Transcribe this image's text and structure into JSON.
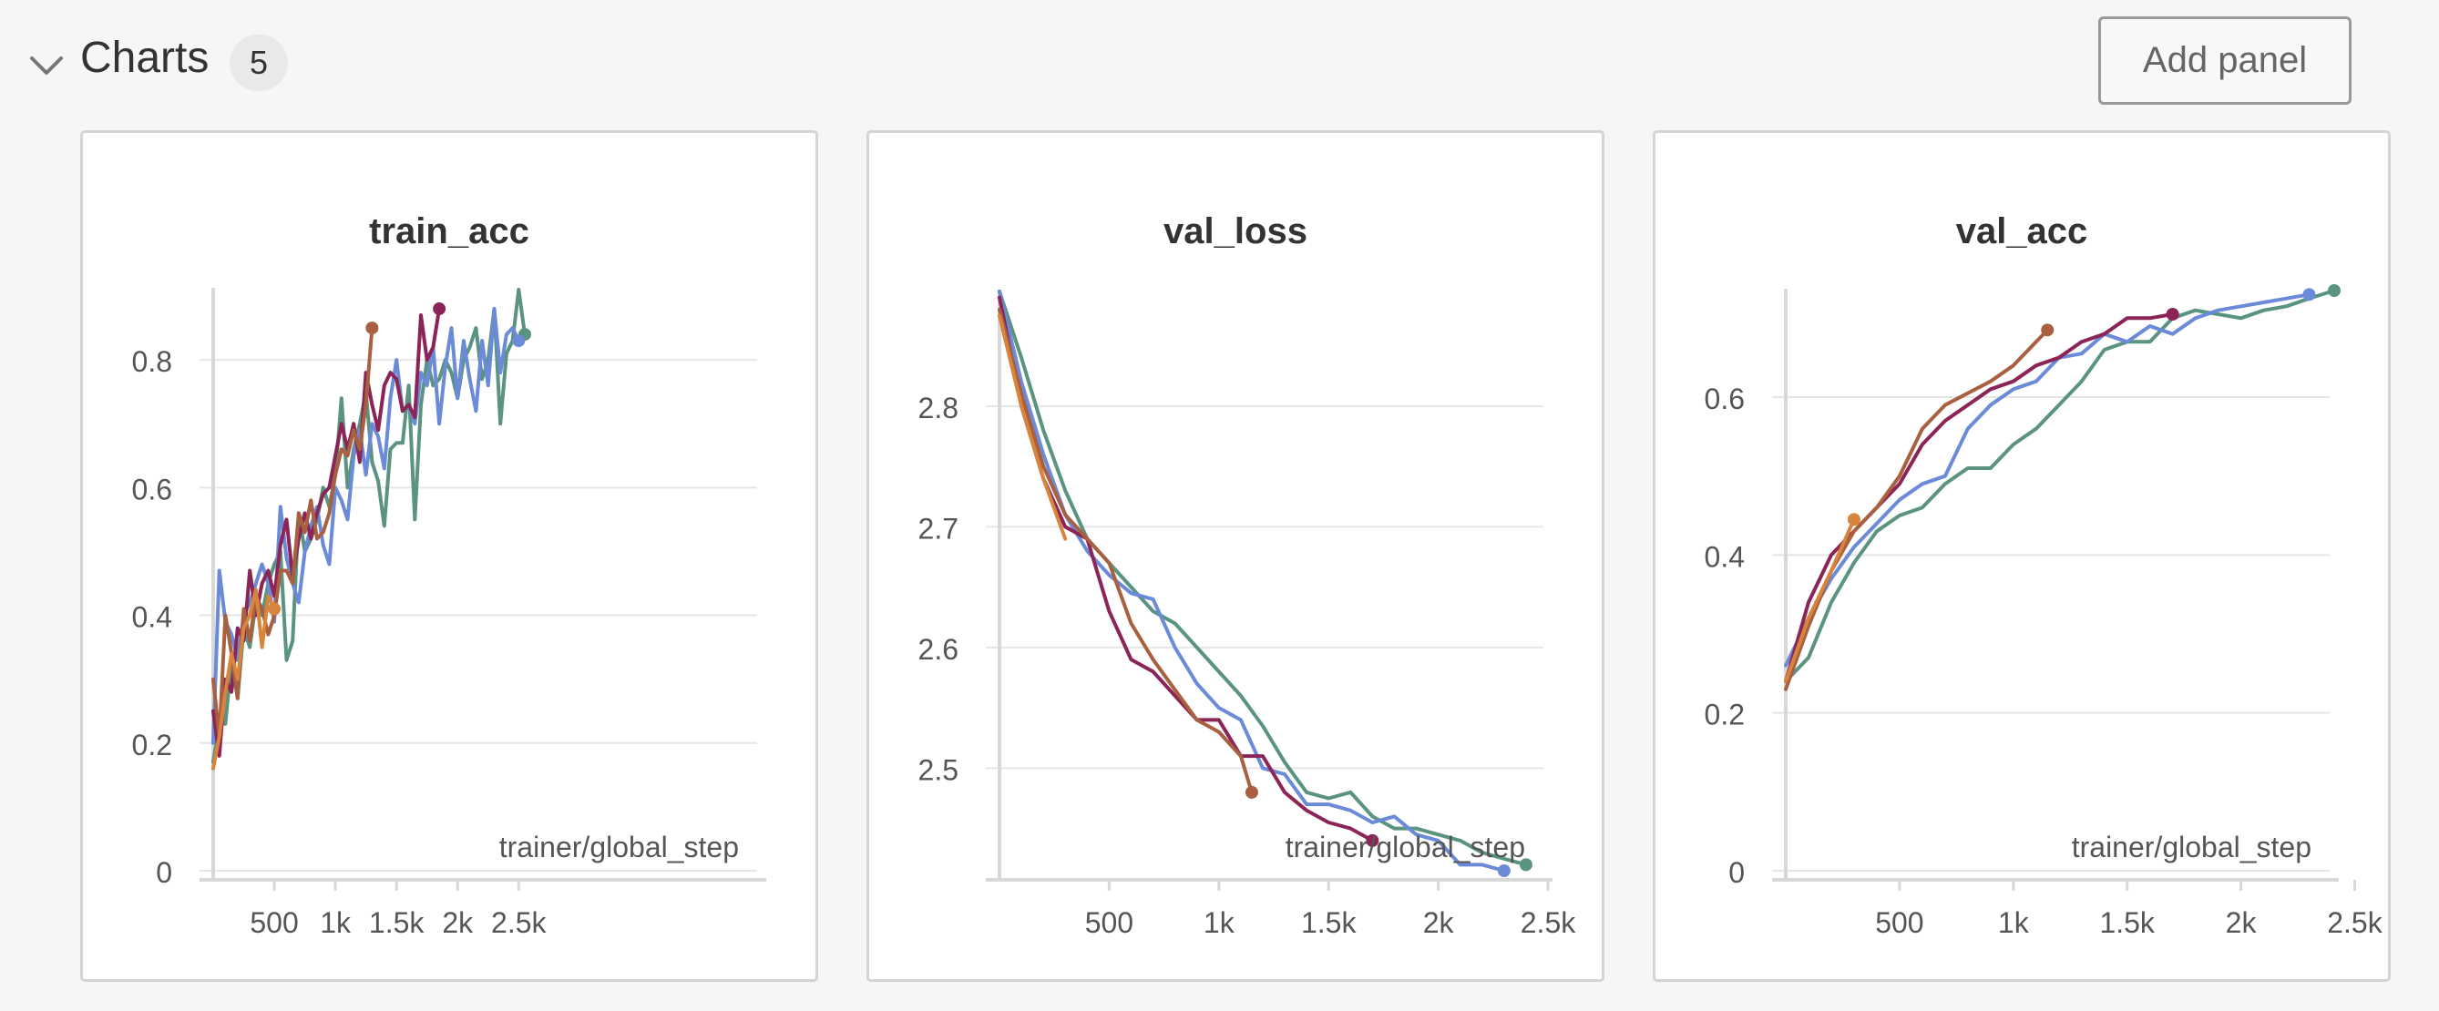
{
  "section": {
    "title": "Charts",
    "count": "5",
    "add_panel_label": "Add panel"
  },
  "icons": {
    "collapse": "chevron-down-icon"
  },
  "colors": {
    "blue": "#6b8ad7",
    "green": "#5a9480",
    "purple": "#8b2457",
    "brown": "#a86040",
    "orange": "#d8843c"
  },
  "chart_data": [
    {
      "type": "line",
      "title": "train_acc",
      "xlabel": "trainer/global_step",
      "ylabel": "",
      "xlim": [
        0,
        2550
      ],
      "ylim": [
        0,
        0.91
      ],
      "x_ticks": [
        500,
        1000,
        1500,
        2000,
        2500
      ],
      "x_tick_labels": [
        "500",
        "1k",
        "1.5k",
        "2k",
        "2.5k"
      ],
      "y_ticks": [
        0,
        0.2,
        0.4,
        0.6,
        0.8
      ],
      "y_tick_labels": [
        "0",
        "0.2",
        "0.4",
        "0.6",
        "0.8"
      ],
      "grid": true,
      "series": [
        {
          "color": "#5a9480",
          "end_marker": true,
          "x": [
            0,
            50,
            100,
            150,
            200,
            250,
            300,
            350,
            400,
            450,
            500,
            550,
            600,
            650,
            700,
            750,
            800,
            850,
            900,
            950,
            1000,
            1050,
            1100,
            1150,
            1200,
            1250,
            1300,
            1350,
            1400,
            1450,
            1500,
            1550,
            1600,
            1650,
            1700,
            1750,
            1800,
            1850,
            1900,
            1950,
            2000,
            2050,
            2100,
            2150,
            2200,
            2250,
            2300,
            2350,
            2400,
            2450,
            2500,
            2550
          ],
          "y": [
            0.17,
            0.23,
            0.23,
            0.33,
            0.27,
            0.38,
            0.35,
            0.42,
            0.4,
            0.45,
            0.48,
            0.5,
            0.33,
            0.36,
            0.56,
            0.5,
            0.52,
            0.55,
            0.6,
            0.57,
            0.62,
            0.74,
            0.6,
            0.66,
            0.7,
            0.75,
            0.64,
            0.61,
            0.54,
            0.66,
            0.67,
            0.67,
            0.76,
            0.55,
            0.73,
            0.8,
            0.76,
            0.77,
            0.8,
            0.78,
            0.74,
            0.8,
            0.82,
            0.85,
            0.77,
            0.8,
            0.88,
            0.7,
            0.81,
            0.83,
            0.91,
            0.84
          ]
        },
        {
          "color": "#6b8ad7",
          "end_marker": true,
          "x": [
            0,
            50,
            100,
            150,
            200,
            250,
            300,
            350,
            400,
            450,
            500,
            550,
            600,
            650,
            700,
            750,
            800,
            850,
            900,
            950,
            1000,
            1050,
            1100,
            1150,
            1200,
            1250,
            1300,
            1350,
            1400,
            1450,
            1500,
            1550,
            1600,
            1650,
            1700,
            1750,
            1800,
            1850,
            1900,
            1950,
            2000,
            2050,
            2100,
            2150,
            2200,
            2250,
            2300,
            2350,
            2400,
            2450,
            2500
          ],
          "y": [
            0.2,
            0.47,
            0.39,
            0.37,
            0.33,
            0.4,
            0.42,
            0.45,
            0.48,
            0.45,
            0.39,
            0.57,
            0.49,
            0.45,
            0.42,
            0.5,
            0.54,
            0.57,
            0.51,
            0.48,
            0.6,
            0.58,
            0.55,
            0.65,
            0.69,
            0.62,
            0.7,
            0.68,
            0.63,
            0.74,
            0.8,
            0.72,
            0.73,
            0.7,
            0.78,
            0.76,
            0.82,
            0.7,
            0.79,
            0.85,
            0.74,
            0.83,
            0.77,
            0.72,
            0.83,
            0.76,
            0.88,
            0.78,
            0.84,
            0.85,
            0.83
          ]
        },
        {
          "color": "#8b2457",
          "end_marker": true,
          "x": [
            0,
            50,
            100,
            150,
            200,
            250,
            300,
            350,
            400,
            450,
            500,
            550,
            600,
            650,
            700,
            750,
            800,
            850,
            900,
            950,
            1000,
            1050,
            1100,
            1150,
            1200,
            1250,
            1300,
            1350,
            1400,
            1450,
            1500,
            1550,
            1600,
            1650,
            1700,
            1750,
            1800,
            1850
          ],
          "y": [
            0.25,
            0.18,
            0.3,
            0.28,
            0.38,
            0.36,
            0.47,
            0.4,
            0.45,
            0.47,
            0.43,
            0.51,
            0.55,
            0.46,
            0.52,
            0.56,
            0.52,
            0.56,
            0.59,
            0.6,
            0.65,
            0.7,
            0.66,
            0.7,
            0.64,
            0.78,
            0.73,
            0.69,
            0.76,
            0.78,
            0.77,
            0.72,
            0.73,
            0.71,
            0.87,
            0.8,
            0.82,
            0.88
          ]
        },
        {
          "color": "#a86040",
          "end_marker": true,
          "x": [
            0,
            50,
            100,
            150,
            200,
            250,
            300,
            350,
            400,
            450,
            500,
            550,
            600,
            650,
            700,
            750,
            800,
            850,
            900,
            950,
            1000,
            1050,
            1100,
            1150,
            1200,
            1250,
            1300
          ],
          "y": [
            0.3,
            0.21,
            0.4,
            0.34,
            0.27,
            0.41,
            0.36,
            0.43,
            0.41,
            0.37,
            0.4,
            0.47,
            0.47,
            0.45,
            0.56,
            0.53,
            0.58,
            0.52,
            0.53,
            0.56,
            0.62,
            0.66,
            0.65,
            0.69,
            0.66,
            0.73,
            0.85
          ]
        },
        {
          "color": "#d8843c",
          "end_marker": true,
          "x": [
            0,
            50,
            100,
            150,
            200,
            250,
            300,
            350,
            400,
            450,
            500
          ],
          "y": [
            0.16,
            0.21,
            0.28,
            0.34,
            0.3,
            0.38,
            0.4,
            0.44,
            0.35,
            0.43,
            0.41
          ]
        }
      ]
    },
    {
      "type": "line",
      "title": "val_loss",
      "xlabel": "trainer/global_step",
      "ylabel": "",
      "xlim": [
        0,
        2500
      ],
      "ylim": [
        2.415,
        2.895
      ],
      "x_ticks": [
        500,
        1000,
        1500,
        2000,
        2500
      ],
      "x_tick_labels": [
        "500",
        "1k",
        "1.5k",
        "2k",
        "2.5k"
      ],
      "y_ticks": [
        2.5,
        2.6,
        2.7,
        2.8
      ],
      "y_tick_labels": [
        "2.5",
        "2.6",
        "2.7",
        "2.8"
      ],
      "grid": true,
      "series": [
        {
          "color": "#5a9480",
          "end_marker": true,
          "x": [
            0,
            100,
            200,
            300,
            400,
            500,
            600,
            700,
            800,
            900,
            1000,
            1100,
            1200,
            1300,
            1400,
            1500,
            1600,
            1700,
            1800,
            1900,
            2000,
            2100,
            2200,
            2300,
            2400
          ],
          "y": [
            2.895,
            2.84,
            2.78,
            2.73,
            2.69,
            2.67,
            2.65,
            2.63,
            2.62,
            2.6,
            2.58,
            2.56,
            2.535,
            2.505,
            2.48,
            2.475,
            2.48,
            2.46,
            2.45,
            2.45,
            2.445,
            2.44,
            2.43,
            2.425,
            2.42
          ]
        },
        {
          "color": "#6b8ad7",
          "end_marker": true,
          "x": [
            0,
            100,
            200,
            300,
            400,
            500,
            600,
            700,
            800,
            900,
            1000,
            1100,
            1200,
            1300,
            1400,
            1500,
            1600,
            1700,
            1800,
            1900,
            2000,
            2100,
            2200,
            2300
          ],
          "y": [
            2.895,
            2.82,
            2.76,
            2.71,
            2.68,
            2.66,
            2.645,
            2.64,
            2.6,
            2.57,
            2.55,
            2.54,
            2.5,
            2.495,
            2.47,
            2.47,
            2.465,
            2.455,
            2.46,
            2.445,
            2.44,
            2.42,
            2.42,
            2.415
          ]
        },
        {
          "color": "#8b2457",
          "end_marker": true,
          "x": [
            0,
            100,
            200,
            300,
            400,
            500,
            600,
            700,
            800,
            900,
            1000,
            1100,
            1200,
            1300,
            1400,
            1500,
            1600,
            1700
          ],
          "y": [
            2.89,
            2.8,
            2.74,
            2.7,
            2.69,
            2.63,
            2.59,
            2.58,
            2.56,
            2.54,
            2.54,
            2.51,
            2.51,
            2.48,
            2.465,
            2.455,
            2.45,
            2.44
          ]
        },
        {
          "color": "#a86040",
          "end_marker": true,
          "x": [
            0,
            100,
            200,
            300,
            400,
            500,
            600,
            700,
            800,
            900,
            1000,
            1100,
            1150
          ],
          "y": [
            2.88,
            2.81,
            2.75,
            2.71,
            2.69,
            2.67,
            2.62,
            2.59,
            2.565,
            2.54,
            2.53,
            2.51,
            2.48
          ]
        },
        {
          "color": "#d8843c",
          "end_marker": false,
          "x": [
            0,
            100,
            200,
            300
          ],
          "y": [
            2.875,
            2.8,
            2.74,
            2.69
          ]
        }
      ]
    },
    {
      "type": "line",
      "title": "val_acc",
      "xlabel": "trainer/global_step",
      "ylabel": "",
      "xlim": [
        0,
        2410
      ],
      "ylim": [
        0,
        0.735
      ],
      "x_ticks": [
        500,
        1000,
        1500,
        2000,
        2500
      ],
      "x_tick_labels": [
        "500",
        "1k",
        "1.5k",
        "2k",
        "2.5k"
      ],
      "y_ticks": [
        0,
        0.2,
        0.4,
        0.6
      ],
      "y_tick_labels": [
        "0",
        "0.2",
        "0.4",
        "0.6"
      ],
      "grid": true,
      "series": [
        {
          "color": "#5a9480",
          "end_marker": true,
          "x": [
            0,
            100,
            200,
            300,
            400,
            500,
            600,
            700,
            800,
            900,
            1000,
            1100,
            1200,
            1300,
            1400,
            1500,
            1600,
            1700,
            1800,
            1900,
            2000,
            2100,
            2200,
            2300,
            2410
          ],
          "y": [
            0.24,
            0.27,
            0.34,
            0.39,
            0.43,
            0.45,
            0.46,
            0.49,
            0.51,
            0.51,
            0.54,
            0.56,
            0.59,
            0.62,
            0.66,
            0.67,
            0.67,
            0.7,
            0.71,
            0.705,
            0.7,
            0.71,
            0.715,
            0.725,
            0.735
          ]
        },
        {
          "color": "#6b8ad7",
          "end_marker": true,
          "x": [
            0,
            100,
            200,
            300,
            400,
            500,
            600,
            700,
            800,
            900,
            1000,
            1100,
            1200,
            1300,
            1400,
            1500,
            1600,
            1700,
            1800,
            1900,
            2000,
            2100,
            2200,
            2300
          ],
          "y": [
            0.26,
            0.32,
            0.37,
            0.41,
            0.44,
            0.47,
            0.49,
            0.5,
            0.56,
            0.59,
            0.61,
            0.62,
            0.65,
            0.655,
            0.68,
            0.67,
            0.69,
            0.68,
            0.7,
            0.71,
            0.715,
            0.72,
            0.725,
            0.73
          ]
        },
        {
          "color": "#8b2457",
          "end_marker": true,
          "x": [
            0,
            100,
            200,
            300,
            400,
            500,
            600,
            700,
            800,
            900,
            1000,
            1100,
            1200,
            1300,
            1400,
            1500,
            1600,
            1700
          ],
          "y": [
            0.24,
            0.34,
            0.4,
            0.43,
            0.46,
            0.49,
            0.54,
            0.57,
            0.59,
            0.61,
            0.62,
            0.64,
            0.65,
            0.67,
            0.68,
            0.7,
            0.7,
            0.705
          ]
        },
        {
          "color": "#a86040",
          "end_marker": true,
          "x": [
            0,
            100,
            200,
            300,
            400,
            500,
            600,
            700,
            800,
            900,
            1000,
            1100,
            1150
          ],
          "y": [
            0.23,
            0.31,
            0.38,
            0.43,
            0.46,
            0.5,
            0.56,
            0.59,
            0.605,
            0.62,
            0.64,
            0.67,
            0.685
          ]
        },
        {
          "color": "#d8843c",
          "end_marker": true,
          "x": [
            0,
            100,
            200,
            300
          ],
          "y": [
            0.24,
            0.32,
            0.38,
            0.445
          ]
        }
      ]
    }
  ]
}
